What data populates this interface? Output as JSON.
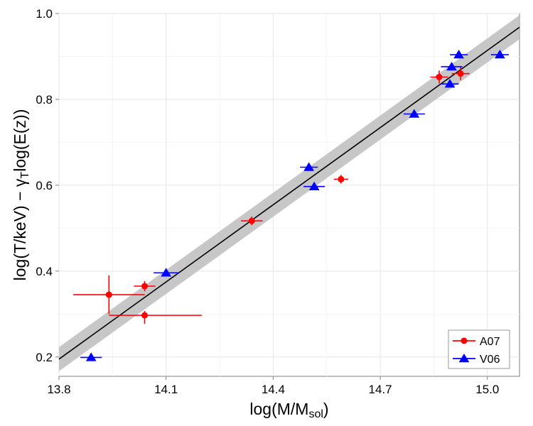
{
  "chart_data": {
    "type": "scatter",
    "xlabel": "log(M/M",
    "xlabel_sub": "sol",
    "xlabel_close": ")",
    "ylabel_part1": "log(T/keV) − ",
    "ylabel_gamma": "γ",
    "ylabel_sub": "T",
    "ylabel_part2": "log(E(z))",
    "xlim": [
      13.8,
      15.09
    ],
    "ylim": [
      0.155,
      1.0
    ],
    "xticks": [
      13.8,
      14.1,
      14.4,
      14.7,
      15.0
    ],
    "xtick_labels": [
      "13.8",
      "14.1",
      "14.4",
      "14.7",
      "15.0"
    ],
    "yticks": [
      0.2,
      0.4,
      0.6,
      0.8,
      1.0
    ],
    "ytick_labels": [
      "0.2",
      "0.4",
      "0.6",
      "0.8",
      "1.0"
    ],
    "grid": true,
    "fit": {
      "x": [
        13.8,
        15.09
      ],
      "y": [
        0.195,
        0.968
      ],
      "band_halfwidth": 0.028
    },
    "series": [
      {
        "name": "A07",
        "color": "#ff0000",
        "marker": "circle",
        "points": [
          {
            "x": 13.94,
            "y": 0.345,
            "xerr": [
              0.1,
              0.1
            ],
            "yerr": [
              0.045,
              0.045
            ]
          },
          {
            "x": 14.04,
            "y": 0.365,
            "xerr": [
              0.03,
              0.03
            ],
            "yerr": [
              0.012,
              0.012
            ]
          },
          {
            "x": 14.04,
            "y": 0.297,
            "xerr": [
              0.1,
              0.16
            ],
            "yerr": [
              0.02,
              0.01
            ]
          },
          {
            "x": 14.34,
            "y": 0.517,
            "xerr": [
              0.03,
              0.03
            ],
            "yerr": [
              0.01,
              0.01
            ]
          },
          {
            "x": 14.59,
            "y": 0.614,
            "xerr": [
              0.02,
              0.02
            ],
            "yerr": [
              0.01,
              0.01
            ]
          },
          {
            "x": 14.865,
            "y": 0.852,
            "xerr": [
              0.025,
              0.025
            ],
            "yerr": [
              0.015,
              0.015
            ]
          },
          {
            "x": 14.925,
            "y": 0.86,
            "xerr": [
              0.025,
              0.025
            ],
            "yerr": [
              0.015,
              0.015
            ]
          }
        ]
      },
      {
        "name": "V06",
        "color": "#0000ff",
        "marker": "triangle",
        "points": [
          {
            "x": 13.89,
            "y": 0.199,
            "xerr": [
              0.03,
              0.03
            ],
            "yerr": [
              0,
              0
            ]
          },
          {
            "x": 14.1,
            "y": 0.396,
            "xerr": [
              0.035,
              0.035
            ],
            "yerr": [
              0,
              0
            ]
          },
          {
            "x": 14.5,
            "y": 0.642,
            "xerr": [
              0.025,
              0.025
            ],
            "yerr": [
              0,
              0
            ]
          },
          {
            "x": 14.515,
            "y": 0.597,
            "xerr": [
              0.03,
              0.03
            ],
            "yerr": [
              0,
              0
            ]
          },
          {
            "x": 14.795,
            "y": 0.766,
            "xerr": [
              0.03,
              0.03
            ],
            "yerr": [
              0,
              0
            ]
          },
          {
            "x": 14.895,
            "y": 0.836,
            "xerr": [
              0.025,
              0.025
            ],
            "yerr": [
              0,
              0
            ]
          },
          {
            "x": 14.9,
            "y": 0.876,
            "xerr": [
              0.03,
              0.03
            ],
            "yerr": [
              0,
              0
            ]
          },
          {
            "x": 14.92,
            "y": 0.904,
            "xerr": [
              0.025,
              0.025
            ],
            "yerr": [
              0,
              0
            ]
          },
          {
            "x": 15.035,
            "y": 0.904,
            "xerr": [
              0.025,
              0.025
            ],
            "yerr": [
              0,
              0
            ]
          }
        ]
      }
    ],
    "legend": {
      "position": "bottom-right",
      "entries": [
        "A07",
        "V06"
      ]
    }
  }
}
